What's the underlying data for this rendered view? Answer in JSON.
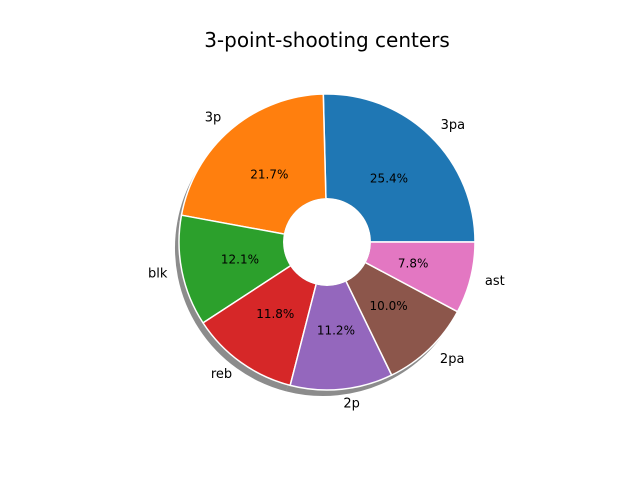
{
  "chart_data": {
    "type": "pie",
    "title": "3-point-shooting centers",
    "donut": true,
    "shadow": true,
    "categories": [
      "3pa",
      "3p",
      "blk",
      "reb",
      "2p",
      "2pa",
      "ast"
    ],
    "values": [
      25.4,
      21.7,
      12.1,
      11.8,
      11.2,
      10.0,
      7.8
    ],
    "percent_labels": [
      "25.4%",
      "21.7%",
      "12.1%",
      "11.8%",
      "11.2%",
      "10.0%",
      "7.8%"
    ],
    "colors": [
      "#1f77b4",
      "#ff7f0e",
      "#2ca02c",
      "#d62728",
      "#9467bd",
      "#8c564b",
      "#e377c2"
    ],
    "start_angle_deg": 0,
    "direction": "counterclockwise",
    "legend": "none"
  }
}
